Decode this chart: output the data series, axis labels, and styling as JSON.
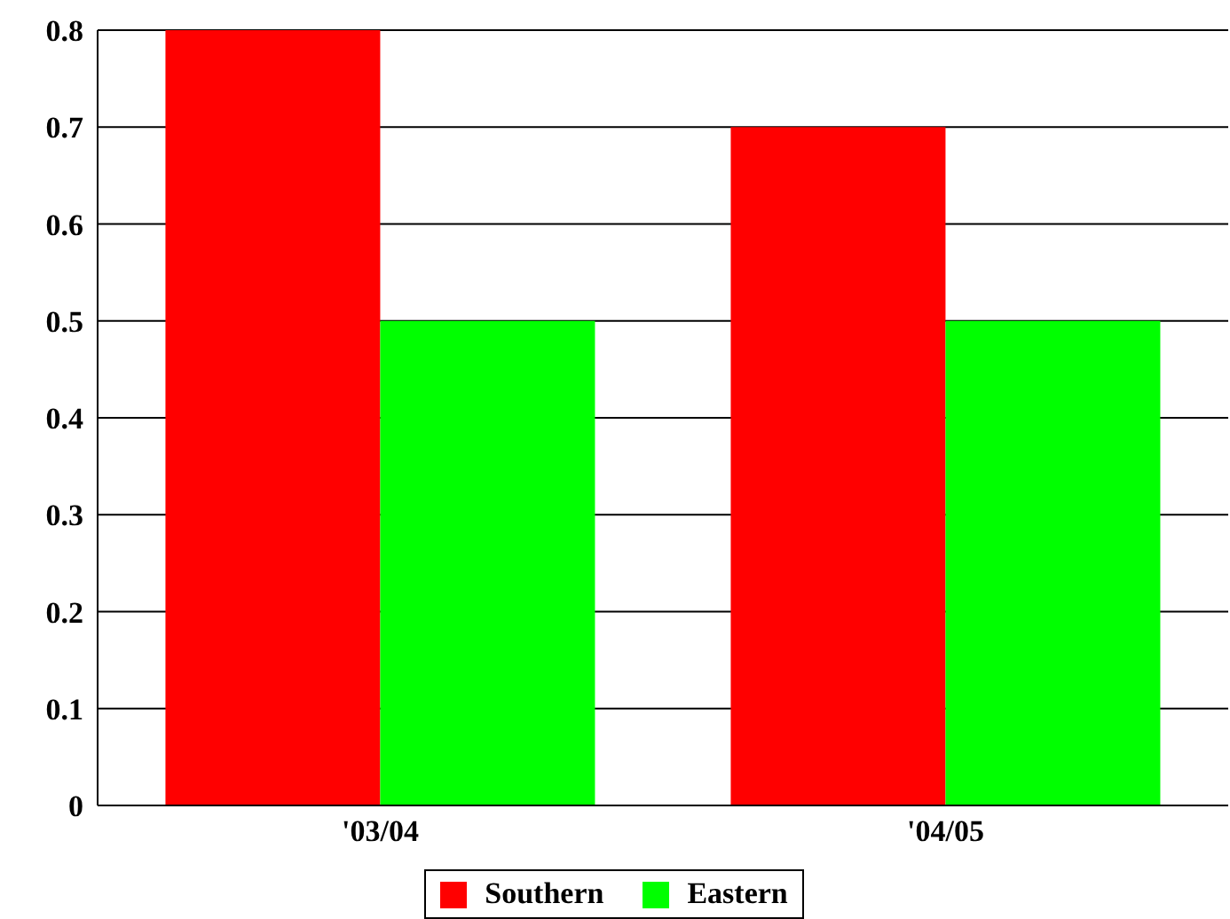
{
  "chart_data": {
    "type": "bar",
    "categories": [
      "'03/04",
      "'04/05"
    ],
    "series": [
      {
        "name": "Southern",
        "color": "#ff0000",
        "values": [
          0.8,
          0.7
        ]
      },
      {
        "name": "Eastern",
        "color": "#00ff00",
        "values": [
          0.5,
          0.5
        ]
      }
    ],
    "ylim": [
      0,
      0.8
    ],
    "yticks": [
      0,
      0.1,
      0.2,
      0.3,
      0.4,
      0.5,
      0.6,
      0.7,
      0.8
    ],
    "grid": "y",
    "legend": "bottom"
  }
}
